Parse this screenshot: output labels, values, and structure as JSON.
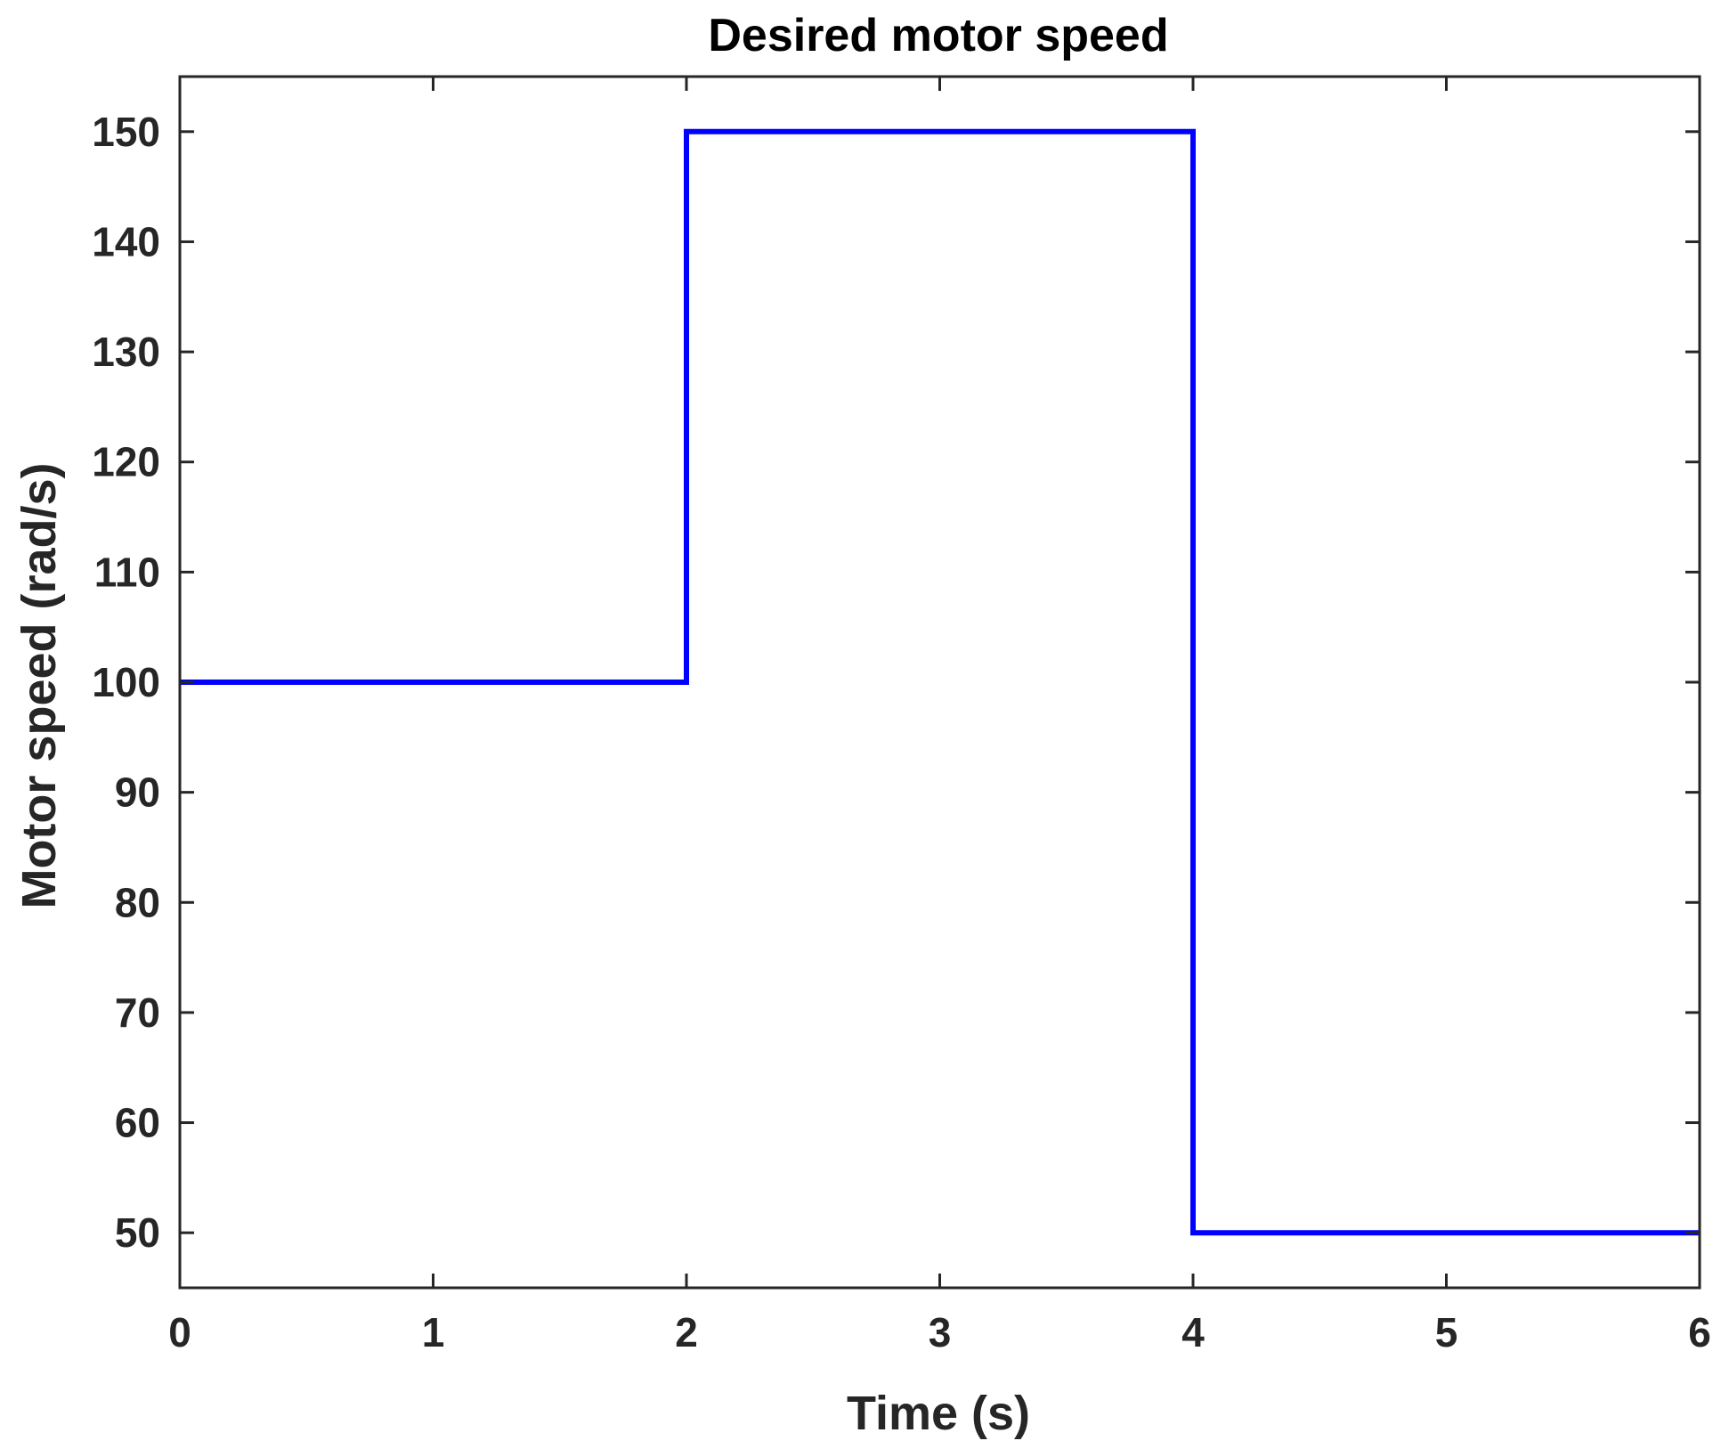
{
  "chart_data": {
    "type": "line",
    "title": "Desired motor speed",
    "xlabel": "Time (s)",
    "ylabel": "Motor speed (rad/s)",
    "xlim": [
      0,
      6
    ],
    "ylim": [
      45,
      155
    ],
    "x_ticks": [
      0,
      1,
      2,
      3,
      4,
      5,
      6
    ],
    "x_tick_labels": [
      "0",
      "1",
      "2",
      "3",
      "4",
      "5",
      "6"
    ],
    "y_ticks": [
      50,
      60,
      70,
      80,
      90,
      100,
      110,
      120,
      130,
      140,
      150
    ],
    "y_tick_labels": [
      "50",
      "60",
      "70",
      "80",
      "90",
      "100",
      "110",
      "120",
      "130",
      "140",
      "150"
    ],
    "grid": false,
    "box": true,
    "series": [
      {
        "color": "#0000ff",
        "x": [
          0,
          2,
          2,
          4,
          4,
          6
        ],
        "y": [
          100,
          100,
          150,
          150,
          50,
          50
        ]
      }
    ]
  },
  "colors": {
    "axis": "#262626",
    "background": "#ffffff",
    "series": "#0000ff"
  }
}
